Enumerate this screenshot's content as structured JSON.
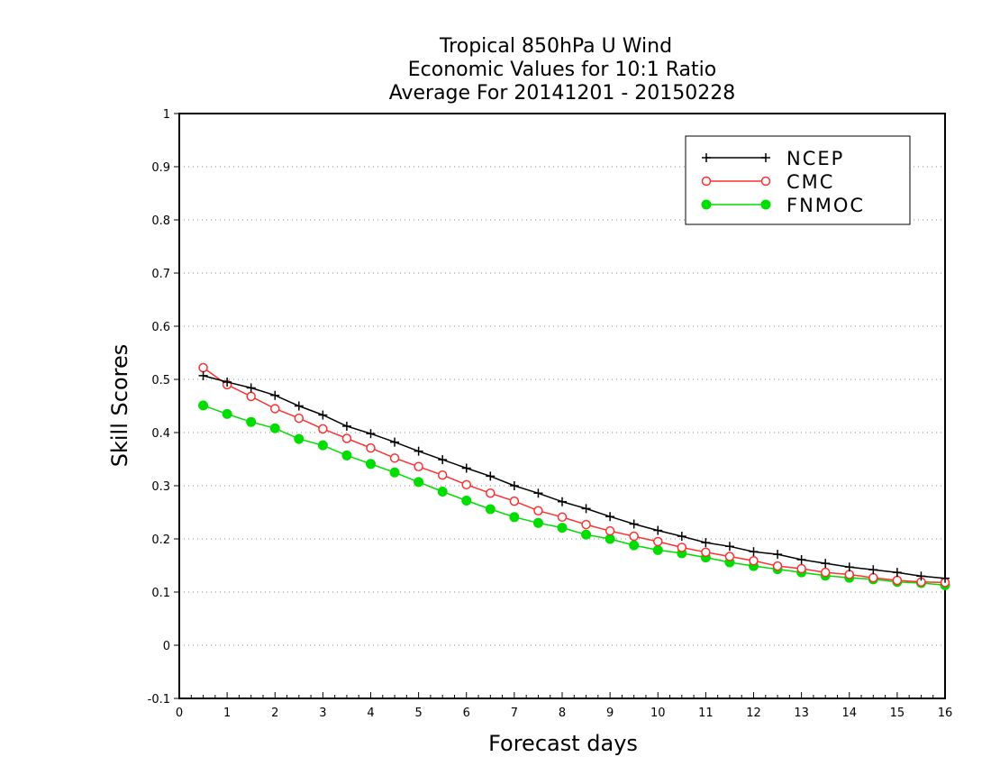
{
  "title_lines": [
    "Tropical 850hPa U Wind",
    "Economic Values for 10:1 Ratio",
    "Average For 20141201 - 20150228"
  ],
  "chart_data": {
    "type": "line",
    "title": "Tropical 850hPa U Wind / Economic Values for 10:1 Ratio / Average For 20141201 - 20150228",
    "xlabel": "Forecast days",
    "ylabel": "Skill Scores",
    "xlim": [
      0,
      16
    ],
    "ylim": [
      -0.1,
      1
    ],
    "x_ticks": [
      0,
      1,
      2,
      3,
      4,
      5,
      6,
      7,
      8,
      9,
      10,
      11,
      12,
      13,
      14,
      15,
      16
    ],
    "y_ticks": [
      -0.1,
      0,
      0.1,
      0.2,
      0.3,
      0.4,
      0.5,
      0.6,
      0.7,
      0.8,
      0.9,
      1
    ],
    "y_tick_labels": [
      "-0.1",
      "0",
      "0.1",
      "0.2",
      "0.3",
      "0.4",
      "0.5",
      "0.6",
      "0.7",
      "0.8",
      "0.9",
      "1"
    ],
    "grid": "horizontal dotted",
    "legend_position": "top-right",
    "x": [
      0.5,
      1,
      1.5,
      2,
      2.5,
      3,
      3.5,
      4,
      4.5,
      5,
      5.5,
      6,
      6.5,
      7,
      7.5,
      8,
      8.5,
      9,
      9.5,
      10,
      10.5,
      11,
      11.5,
      12,
      12.5,
      13,
      13.5,
      14,
      14.5,
      15,
      15.5,
      16
    ],
    "series": [
      {
        "name": "NCEP",
        "color": "#000000",
        "marker": "plus",
        "values": [
          0.507,
          0.495,
          0.484,
          0.47,
          0.45,
          0.433,
          0.412,
          0.398,
          0.382,
          0.365,
          0.349,
          0.333,
          0.318,
          0.3,
          0.286,
          0.27,
          0.257,
          0.242,
          0.228,
          0.216,
          0.205,
          0.193,
          0.186,
          0.176,
          0.171,
          0.161,
          0.154,
          0.147,
          0.142,
          0.137,
          0.13,
          0.126
        ]
      },
      {
        "name": "CMC",
        "color": "#ff3030",
        "marker": "open-circle",
        "values": [
          0.522,
          0.49,
          0.468,
          0.445,
          0.427,
          0.407,
          0.389,
          0.371,
          0.352,
          0.336,
          0.32,
          0.302,
          0.286,
          0.271,
          0.253,
          0.241,
          0.227,
          0.215,
          0.205,
          0.195,
          0.184,
          0.175,
          0.167,
          0.159,
          0.149,
          0.144,
          0.137,
          0.133,
          0.127,
          0.122,
          0.119,
          0.118
        ]
      },
      {
        "name": "FNMOC",
        "color": "#00dd00",
        "marker": "filled-circle",
        "values": [
          0.451,
          0.435,
          0.42,
          0.408,
          0.388,
          0.376,
          0.357,
          0.341,
          0.325,
          0.307,
          0.289,
          0.272,
          0.256,
          0.241,
          0.23,
          0.221,
          0.208,
          0.2,
          0.188,
          0.179,
          0.173,
          0.165,
          0.156,
          0.149,
          0.143,
          0.137,
          0.131,
          0.127,
          0.124,
          0.119,
          0.117,
          0.113
        ]
      }
    ]
  }
}
